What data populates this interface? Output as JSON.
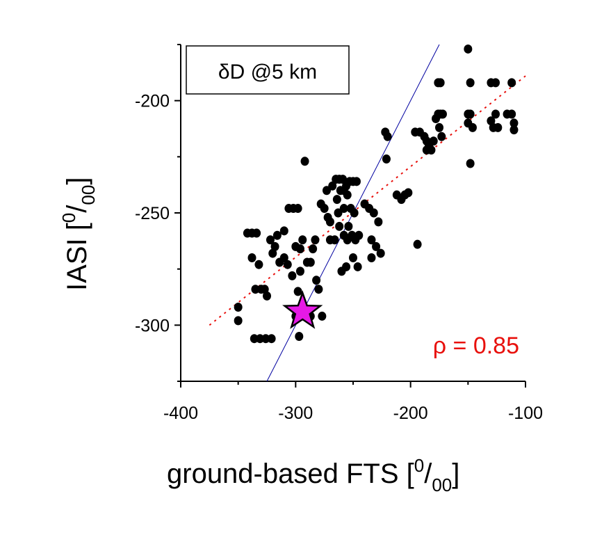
{
  "chart_data": {
    "type": "scatter",
    "title": "",
    "xlabel": {
      "main": "ground-based FTS [",
      "sup": "0",
      "slash": "/",
      "sub": "00",
      "close": "]"
    },
    "ylabel": {
      "main": "IASI [",
      "sup": "0",
      "slash": "/",
      "sub": "00",
      "close": "]"
    },
    "xlim": [
      -400,
      -100
    ],
    "ylim": [
      -325,
      -175
    ],
    "xticks": [
      -400,
      -300,
      -200,
      -100
    ],
    "xtick_labels": [
      "-400",
      "-300",
      "-200",
      "-100"
    ],
    "yticks": [
      -300,
      -250,
      -200
    ],
    "ytick_labels": [
      "-300",
      "-250",
      "-200"
    ],
    "grid": false,
    "annotation_box": "δD @5 km",
    "correlation_label": "ρ = 0.85",
    "colors": {
      "points": "#000000",
      "star": "#e619e6",
      "fit_line": "#e8100c",
      "one_to_one": "#0000a0",
      "rho": "#e8100c"
    },
    "points": [
      [
        -350,
        -292
      ],
      [
        -350,
        -298
      ],
      [
        -342,
        -259
      ],
      [
        -338,
        -259
      ],
      [
        -334,
        -259
      ],
      [
        -338,
        -270
      ],
      [
        -332,
        -273
      ],
      [
        -335,
        -284
      ],
      [
        -330,
        -284
      ],
      [
        -327,
        -284
      ],
      [
        -325,
        -287
      ],
      [
        -320,
        -268
      ],
      [
        -318,
        -265
      ],
      [
        -316,
        -260
      ],
      [
        -314,
        -272
      ],
      [
        -310,
        -270
      ],
      [
        -322,
        -262
      ],
      [
        -336,
        -306
      ],
      [
        -331,
        -306
      ],
      [
        -326,
        -306
      ],
      [
        -321,
        -306
      ],
      [
        -310,
        -258
      ],
      [
        -306,
        -248
      ],
      [
        -302,
        -248
      ],
      [
        -298,
        -248
      ],
      [
        -307,
        -273
      ],
      [
        -303,
        -278
      ],
      [
        -298,
        -285
      ],
      [
        -295,
        -292
      ],
      [
        -293,
        -296
      ],
      [
        -300,
        -296
      ],
      [
        -297,
        -305
      ],
      [
        -296,
        -276
      ],
      [
        -296,
        -266
      ],
      [
        -300,
        -265
      ],
      [
        -294,
        -262
      ],
      [
        -290,
        -272
      ],
      [
        -287,
        -272
      ],
      [
        -285,
        -266
      ],
      [
        -283,
        -262
      ],
      [
        -282,
        -280
      ],
      [
        -280,
        -284
      ],
      [
        -277,
        -296
      ],
      [
        -287,
        -296
      ],
      [
        -292,
        -227
      ],
      [
        -278,
        -246
      ],
      [
        -275,
        -248
      ],
      [
        -272,
        -252
      ],
      [
        -270,
        -254
      ],
      [
        -273,
        -240
      ],
      [
        -268,
        -238
      ],
      [
        -265,
        -235
      ],
      [
        -262,
        -235
      ],
      [
        -259,
        -235
      ],
      [
        -256,
        -238
      ],
      [
        -253,
        -236
      ],
      [
        -250,
        -236
      ],
      [
        -247,
        -236
      ],
      [
        -264,
        -244
      ],
      [
        -261,
        -240
      ],
      [
        -258,
        -240
      ],
      [
        -255,
        -242
      ],
      [
        -252,
        -248
      ],
      [
        -249,
        -250
      ],
      [
        -270,
        -262
      ],
      [
        -266,
        -262
      ],
      [
        -262,
        -256
      ],
      [
        -258,
        -260
      ],
      [
        -255,
        -262
      ],
      [
        -251,
        -260
      ],
      [
        -248,
        -262
      ],
      [
        -245,
        -260
      ],
      [
        -263,
        -250
      ],
      [
        -258,
        -248
      ],
      [
        -254,
        -256
      ],
      [
        -250,
        -270
      ],
      [
        -246,
        -274
      ],
      [
        -260,
        -276
      ],
      [
        -256,
        -274
      ],
      [
        -240,
        -246
      ],
      [
        -236,
        -248
      ],
      [
        -232,
        -250
      ],
      [
        -228,
        -254
      ],
      [
        -234,
        -262
      ],
      [
        -230,
        -265
      ],
      [
        -226,
        -268
      ],
      [
        -234,
        -270
      ],
      [
        -222,
        -214
      ],
      [
        -220,
        -216
      ],
      [
        -221,
        -226
      ],
      [
        -212,
        -242
      ],
      [
        -208,
        -244
      ],
      [
        -205,
        -242
      ],
      [
        -202,
        -241
      ],
      [
        -194,
        -264
      ],
      [
        -196,
        -214
      ],
      [
        -192,
        -214
      ],
      [
        -188,
        -216
      ],
      [
        -186,
        -218
      ],
      [
        -184,
        -220
      ],
      [
        -180,
        -218
      ],
      [
        -182,
        -222
      ],
      [
        -186,
        -222
      ],
      [
        -178,
        -208
      ],
      [
        -176,
        -206
      ],
      [
        -174,
        -206
      ],
      [
        -175,
        -212
      ],
      [
        -173,
        -216
      ],
      [
        -172,
        -206
      ],
      [
        -176,
        -192
      ],
      [
        -174,
        -192
      ],
      [
        -150,
        -177
      ],
      [
        -148,
        -192
      ],
      [
        -150,
        -206
      ],
      [
        -148,
        -206
      ],
      [
        -146,
        -212
      ],
      [
        -150,
        -210
      ],
      [
        -148,
        -228
      ],
      [
        -130,
        -192
      ],
      [
        -126,
        -192
      ],
      [
        -126,
        -206
      ],
      [
        -128,
        -212
      ],
      [
        -124,
        -212
      ],
      [
        -130,
        -209
      ],
      [
        -116,
        -206
      ],
      [
        -112,
        -206
      ],
      [
        -112,
        -192
      ],
      [
        -110,
        -210
      ],
      [
        -110,
        -213
      ]
    ],
    "star": [
      -294,
      -294
    ],
    "fit_line": {
      "x": [
        -375,
        -100
      ],
      "y": [
        -300,
        -189
      ]
    },
    "one_to_one_line": {
      "x": [
        -325,
        -175
      ],
      "y": [
        -325,
        -175
      ]
    }
  }
}
